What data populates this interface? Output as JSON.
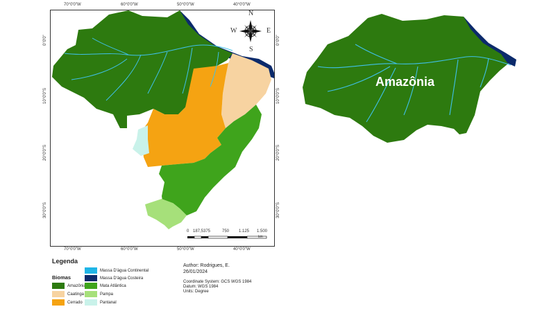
{
  "map": {
    "top_lon_labels": [
      "70°0'0\"W",
      "60°0'0\"W",
      "50°0'0\"W",
      "40°0'0\"W"
    ],
    "bottom_lon_labels": [
      "70°0'0\"W",
      "60°0'0\"W",
      "50°0'0\"W",
      "40°0'0\"W"
    ],
    "left_lat_labels": [
      "0°0'0\"",
      "10°0'0\"S",
      "20°0'0\"S",
      "30°0'0\"S"
    ],
    "right_lat_labels": [
      "0°0'0\"",
      "10°0'0\"S",
      "20°0'0\"S",
      "30°0'0\"S"
    ],
    "compass": {
      "n": "N",
      "s": "S",
      "e": "E",
      "w": "W"
    },
    "scale": {
      "labels": [
        "0",
        "187,5",
        "375",
        "750",
        "1.125",
        "1.500"
      ],
      "unit": "km"
    }
  },
  "zoom_map": {
    "label": "Amazônia"
  },
  "legend": {
    "title": "Legenda",
    "subtitle": "Biomas",
    "items": [
      {
        "label": "Amazônia",
        "color": "#2d7a0f"
      },
      {
        "label": "Caatinga",
        "color": "#f7d3a1"
      },
      {
        "label": "Cerrado",
        "color": "#f5a312"
      },
      {
        "label": "Massa D'água Continental",
        "color": "#1fb5e6"
      },
      {
        "label": "Massa D'água Costeira",
        "color": "#0b2a6b"
      },
      {
        "label": "Mata Atlântica",
        "color": "#3fa41c"
      },
      {
        "label": "Pampa",
        "color": "#a6e07a"
      },
      {
        "label": "Pantanal",
        "color": "#c9f2ea"
      }
    ]
  },
  "metadata": {
    "author": "Author: Rodrigues, E.",
    "date": "26/01/2024",
    "coord": "Coordinate System: GCS WGS 1984",
    "datum": "Datum: WGS 1984",
    "units": "Units: Degree"
  },
  "colors": {
    "amazonia": "#2d7a0f",
    "caatinga": "#f7d3a1",
    "cerrado": "#f5a312",
    "mata": "#3fa41c",
    "pampa": "#a6e07a",
    "pantanal": "#c9f2ea",
    "river": "#3fc1ea",
    "coast": "#0b2a6b"
  }
}
